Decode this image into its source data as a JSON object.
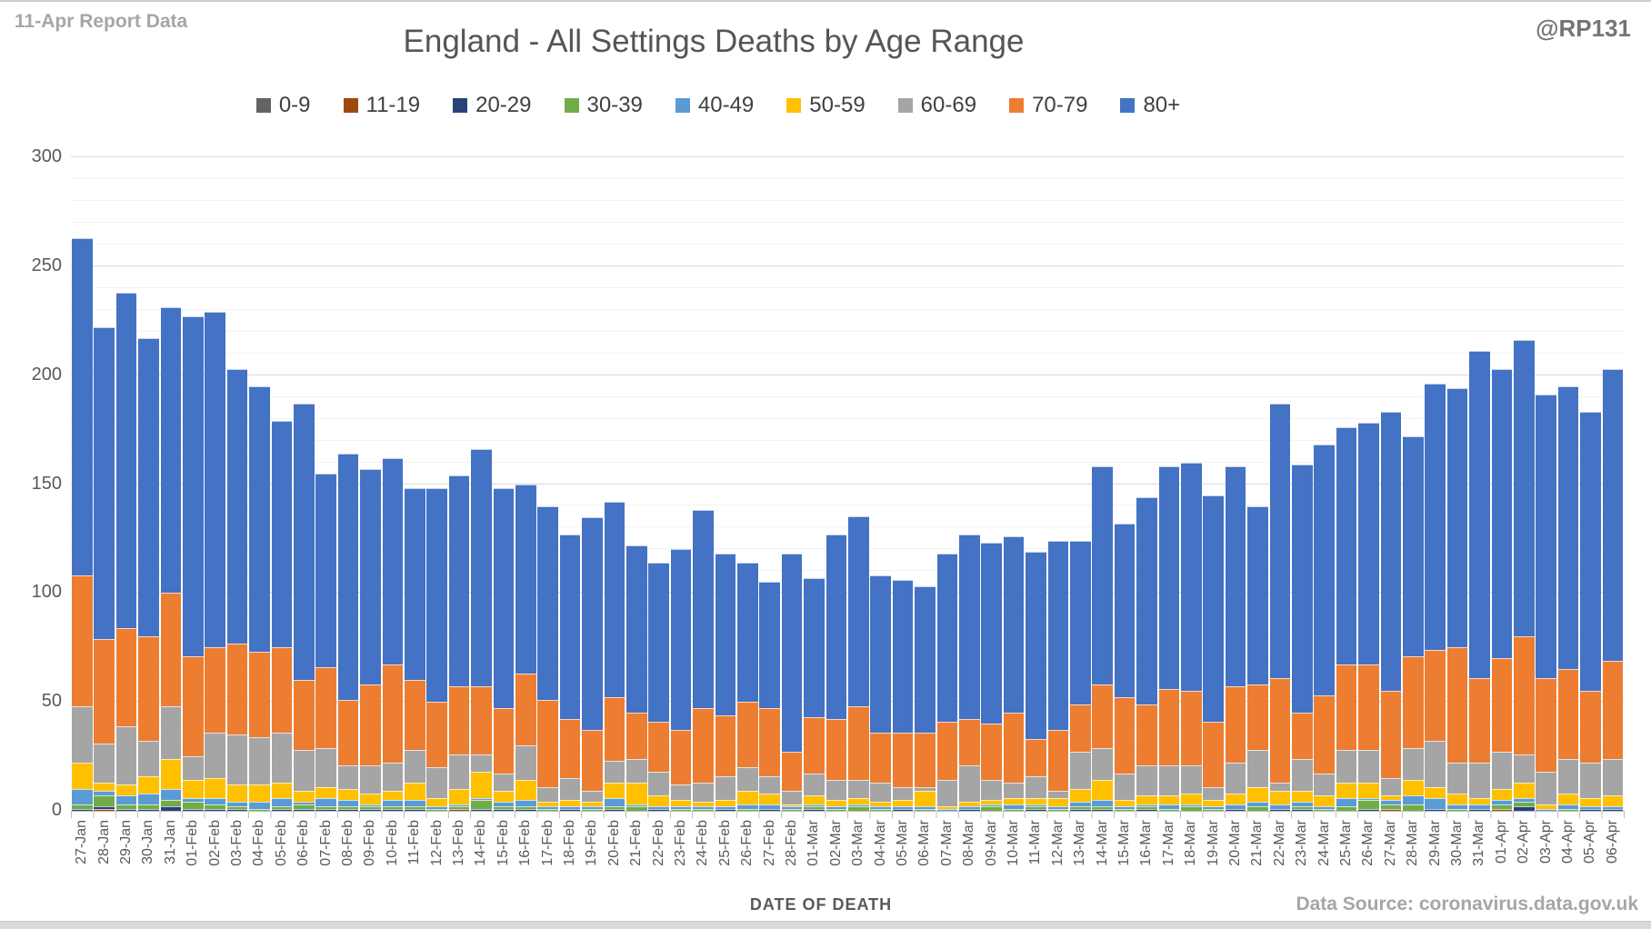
{
  "header": {
    "report_label": "11-Apr Report Data",
    "title": "England - All Settings Deaths by Age Range",
    "watermark": "@RP131"
  },
  "footer": {
    "source": "Data Source: coronavirus.data.gov.uk"
  },
  "axes": {
    "x_title": "DATE OF DEATH",
    "y_ticks": [
      0,
      50,
      100,
      150,
      200,
      250,
      300
    ],
    "y_minor_step": 10,
    "y_major_step": 50
  },
  "chart_data": {
    "type": "bar",
    "stacked": true,
    "title": "England - All Settings Deaths by Age Range",
    "xlabel": "DATE OF DEATH",
    "ylabel": "",
    "ylim": [
      0,
      300
    ],
    "grid": "major 50 / minor 10 horizontal",
    "legend_position": "top",
    "categories": [
      "27-Jan",
      "28-Jan",
      "29-Jan",
      "30-Jan",
      "31-Jan",
      "01-Feb",
      "02-Feb",
      "03-Feb",
      "04-Feb",
      "05-Feb",
      "06-Feb",
      "07-Feb",
      "08-Feb",
      "09-Feb",
      "10-Feb",
      "11-Feb",
      "12-Feb",
      "13-Feb",
      "14-Feb",
      "15-Feb",
      "16-Feb",
      "17-Feb",
      "18-Feb",
      "19-Feb",
      "20-Feb",
      "21-Feb",
      "22-Feb",
      "23-Feb",
      "24-Feb",
      "25-Feb",
      "26-Feb",
      "27-Feb",
      "28-Feb",
      "01-Mar",
      "02-Mar",
      "03-Mar",
      "04-Mar",
      "05-Mar",
      "06-Mar",
      "07-Mar",
      "08-Mar",
      "09-Mar",
      "10-Mar",
      "11-Mar",
      "12-Mar",
      "13-Mar",
      "14-Mar",
      "15-Mar",
      "16-Mar",
      "17-Mar",
      "18-Mar",
      "19-Mar",
      "20-Mar",
      "21-Mar",
      "22-Mar",
      "23-Mar",
      "24-Mar",
      "25-Mar",
      "26-Mar",
      "27-Mar",
      "28-Mar",
      "29-Mar",
      "30-Mar",
      "31-Mar",
      "01-Apr",
      "02-Apr",
      "03-Apr",
      "04-Apr",
      "05-Apr",
      "06-Apr"
    ],
    "series": [
      {
        "name": "0-9",
        "color": "#636363",
        "values": [
          0,
          0,
          0,
          0,
          0,
          0,
          0,
          0,
          0,
          0,
          0,
          0,
          0,
          0,
          0,
          0,
          0,
          0,
          0,
          0,
          0,
          0,
          0,
          0,
          0,
          0,
          0,
          0,
          0,
          0,
          0,
          0,
          0,
          0,
          0,
          0,
          0,
          0,
          0,
          0,
          0,
          0,
          0,
          0,
          0,
          0,
          0,
          0,
          0,
          0,
          0,
          0,
          0,
          0,
          0,
          0,
          0,
          0,
          0,
          0,
          0,
          0,
          0,
          0,
          0,
          0,
          0,
          0,
          0,
          0
        ]
      },
      {
        "name": "11-19",
        "color": "#9E480E",
        "values": [
          0,
          1,
          0,
          0,
          0,
          0,
          0,
          0,
          0,
          0,
          0,
          0,
          0,
          0,
          0,
          0,
          0,
          1,
          0,
          0,
          0,
          0,
          0,
          0,
          0,
          0,
          0,
          0,
          0,
          0,
          0,
          0,
          0,
          0,
          0,
          0,
          0,
          0,
          0,
          0,
          0,
          0,
          0,
          0,
          0,
          0,
          0,
          0,
          0,
          0,
          0,
          0,
          0,
          0,
          0,
          0,
          0,
          0,
          0,
          1,
          0,
          0,
          0,
          0,
          1,
          0,
          0,
          0,
          0,
          0
        ]
      },
      {
        "name": "20-29",
        "color": "#264478",
        "values": [
          1,
          1,
          1,
          1,
          2,
          1,
          1,
          1,
          0,
          1,
          1,
          1,
          1,
          1,
          1,
          1,
          0,
          0,
          1,
          1,
          1,
          0,
          1,
          0,
          1,
          0,
          1,
          0,
          0,
          1,
          0,
          1,
          0,
          1,
          0,
          0,
          0,
          1,
          0,
          0,
          1,
          0,
          0,
          1,
          0,
          1,
          1,
          0,
          1,
          0,
          0,
          0,
          1,
          0,
          1,
          1,
          0,
          0,
          1,
          0,
          0,
          1,
          0,
          1,
          0,
          2,
          0,
          0,
          1,
          1
        ]
      },
      {
        "name": "30-39",
        "color": "#70AD47",
        "values": [
          2,
          5,
          2,
          2,
          3,
          3,
          2,
          1,
          1,
          1,
          2,
          1,
          1,
          1,
          1,
          1,
          1,
          1,
          4,
          1,
          1,
          1,
          0,
          1,
          1,
          2,
          0,
          1,
          1,
          0,
          1,
          0,
          1,
          1,
          1,
          2,
          1,
          0,
          1,
          0,
          0,
          2,
          1,
          1,
          1,
          1,
          1,
          1,
          1,
          1,
          2,
          1,
          0,
          2,
          0,
          1,
          1,
          2,
          4,
          2,
          3,
          0,
          1,
          0,
          2,
          2,
          0,
          1,
          0,
          0
        ]
      },
      {
        "name": "40-49",
        "color": "#5B9BD5",
        "values": [
          7,
          2,
          4,
          5,
          5,
          2,
          3,
          2,
          3,
          4,
          1,
          4,
          3,
          1,
          3,
          3,
          1,
          1,
          1,
          2,
          3,
          1,
          1,
          1,
          4,
          1,
          1,
          1,
          1,
          1,
          2,
          2,
          1,
          1,
          1,
          1,
          1,
          1,
          1,
          1,
          1,
          1,
          2,
          1,
          1,
          2,
          3,
          1,
          1,
          2,
          1,
          1,
          2,
          2,
          2,
          2,
          1,
          4,
          1,
          2,
          4,
          5,
          2,
          2,
          2,
          2,
          1,
          2,
          1,
          1
        ]
      },
      {
        "name": "50-59",
        "color": "#FFC000",
        "values": [
          12,
          4,
          5,
          8,
          14,
          8,
          9,
          8,
          8,
          7,
          5,
          5,
          5,
          5,
          4,
          8,
          4,
          7,
          12,
          5,
          9,
          2,
          3,
          2,
          7,
          10,
          5,
          3,
          2,
          3,
          6,
          5,
          1,
          4,
          3,
          3,
          2,
          3,
          7,
          1,
          2,
          2,
          3,
          3,
          4,
          6,
          9,
          3,
          4,
          4,
          5,
          3,
          5,
          7,
          6,
          5,
          5,
          7,
          7,
          2,
          7,
          5,
          5,
          3,
          5,
          7,
          2,
          5,
          4,
          5
        ]
      },
      {
        "name": "60-69",
        "color": "#A5A5A5",
        "values": [
          26,
          18,
          27,
          16,
          24,
          11,
          21,
          23,
          22,
          23,
          19,
          18,
          11,
          13,
          13,
          15,
          14,
          16,
          8,
          8,
          16,
          7,
          10,
          5,
          10,
          11,
          11,
          7,
          9,
          11,
          11,
          8,
          6,
          10,
          9,
          8,
          9,
          6,
          2,
          12,
          17,
          9,
          7,
          10,
          3,
          17,
          15,
          12,
          14,
          14,
          13,
          6,
          14,
          17,
          4,
          15,
          10,
          15,
          15,
          8,
          15,
          21,
          14,
          16,
          17,
          13,
          15,
          16,
          16,
          17
        ]
      },
      {
        "name": "70-79",
        "color": "#ED7D31",
        "values": [
          60,
          48,
          45,
          48,
          52,
          46,
          39,
          42,
          39,
          39,
          32,
          37,
          30,
          37,
          45,
          32,
          30,
          31,
          31,
          30,
          33,
          40,
          27,
          28,
          29,
          21,
          23,
          25,
          34,
          28,
          30,
          31,
          18,
          26,
          28,
          34,
          23,
          25,
          25,
          27,
          21,
          26,
          32,
          17,
          28,
          22,
          29,
          35,
          28,
          35,
          34,
          30,
          35,
          30,
          48,
          21,
          36,
          39,
          39,
          40,
          42,
          42,
          53,
          39,
          43,
          54,
          43,
          41,
          33,
          45
        ]
      },
      {
        "name": "80+",
        "color": "#4472C4",
        "values": [
          155,
          143,
          154,
          137,
          131,
          156,
          154,
          126,
          122,
          104,
          127,
          89,
          113,
          99,
          95,
          88,
          98,
          97,
          109,
          101,
          87,
          89,
          85,
          98,
          90,
          77,
          73,
          83,
          91,
          74,
          64,
          58,
          91,
          64,
          85,
          87,
          72,
          70,
          67,
          77,
          85,
          83,
          81,
          86,
          87,
          75,
          100,
          80,
          95,
          102,
          105,
          104,
          101,
          82,
          126,
          114,
          115,
          109,
          111,
          128,
          101,
          122,
          119,
          150,
          133,
          136,
          130,
          130,
          128,
          134
        ]
      }
    ]
  }
}
